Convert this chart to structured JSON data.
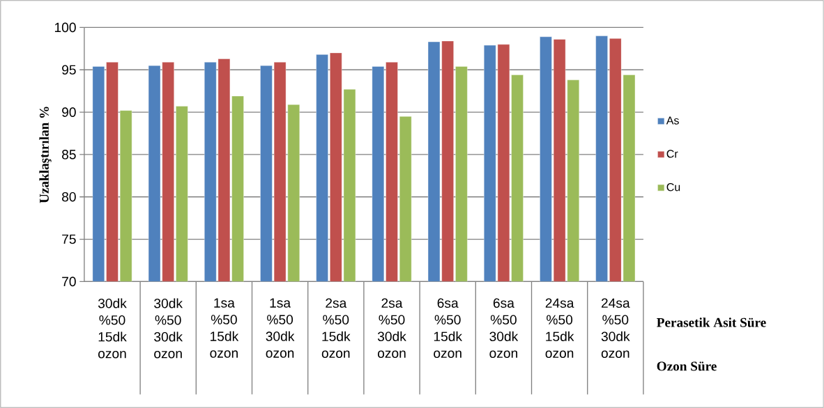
{
  "chart_data": {
    "type": "bar",
    "ylabel": "Uzaklaştırılan %",
    "categories": [
      "30dk %50 15dk ozon",
      "30dk %50 30dk ozon",
      "1sa %50 15dk ozon",
      "1sa %50 30dk ozon",
      "2sa %50 15dk ozon",
      "2sa %50 30dk ozon",
      "6sa %50 15dk ozon",
      "6sa %50 30dk ozon",
      "24sa %50 15dk ozon",
      "24sa %50 30dk ozon"
    ],
    "series": [
      {
        "name": "As",
        "color": "#4f81bd",
        "values": [
          95.4,
          95.5,
          95.9,
          95.5,
          96.8,
          95.4,
          98.3,
          97.9,
          98.9,
          99.0
        ]
      },
      {
        "name": "Cr",
        "color": "#c0504d",
        "values": [
          95.9,
          95.9,
          96.3,
          95.9,
          97.0,
          95.9,
          98.4,
          98.0,
          98.6,
          98.7
        ]
      },
      {
        "name": "Cu",
        "color": "#9bbb59",
        "values": [
          90.2,
          90.7,
          91.9,
          90.9,
          92.7,
          89.5,
          95.4,
          94.4,
          93.8,
          94.4
        ]
      }
    ],
    "ylim": [
      70,
      100
    ],
    "yticks": [
      70,
      75,
      80,
      85,
      90,
      95,
      100
    ],
    "grid": "y",
    "legend": "right",
    "annotations": [
      "Perasetik Asit Süre",
      "Ozon Süre"
    ]
  }
}
